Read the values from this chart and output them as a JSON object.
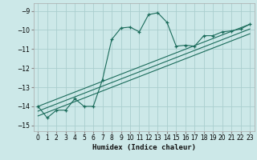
{
  "xlabel": "Humidex (Indice chaleur)",
  "bg_color": "#cce8e8",
  "grid_color": "#aacece",
  "line_color": "#1a6b5a",
  "xlim": [
    -0.5,
    23.5
  ],
  "ylim": [
    -15.3,
    -8.6
  ],
  "yticks": [
    -15,
    -14,
    -13,
    -12,
    -11,
    -10,
    -9
  ],
  "xticks": [
    0,
    1,
    2,
    3,
    4,
    5,
    6,
    7,
    8,
    9,
    10,
    11,
    12,
    13,
    14,
    15,
    16,
    17,
    18,
    19,
    20,
    21,
    22,
    23
  ],
  "main_line_x": [
    0,
    1,
    2,
    3,
    4,
    5,
    6,
    7,
    8,
    9,
    10,
    11,
    12,
    13,
    14,
    15,
    16,
    17,
    18,
    19,
    20,
    21,
    22,
    23
  ],
  "main_line_y": [
    -14.0,
    -14.6,
    -14.2,
    -14.2,
    -13.6,
    -14.0,
    -14.0,
    -12.6,
    -10.5,
    -9.9,
    -9.85,
    -10.1,
    -9.2,
    -9.1,
    -9.6,
    -10.85,
    -10.8,
    -10.85,
    -10.3,
    -10.3,
    -10.1,
    -10.05,
    -9.95,
    -9.7
  ],
  "reg_lines": [
    {
      "x": [
        0,
        23
      ],
      "y": [
        -14.0,
        -9.7
      ]
    },
    {
      "x": [
        0,
        23
      ],
      "y": [
        -14.25,
        -9.95
      ]
    },
    {
      "x": [
        0,
        23
      ],
      "y": [
        -14.5,
        -10.2
      ]
    }
  ],
  "tick_fontsize": 5.5,
  "xlabel_fontsize": 6.5
}
